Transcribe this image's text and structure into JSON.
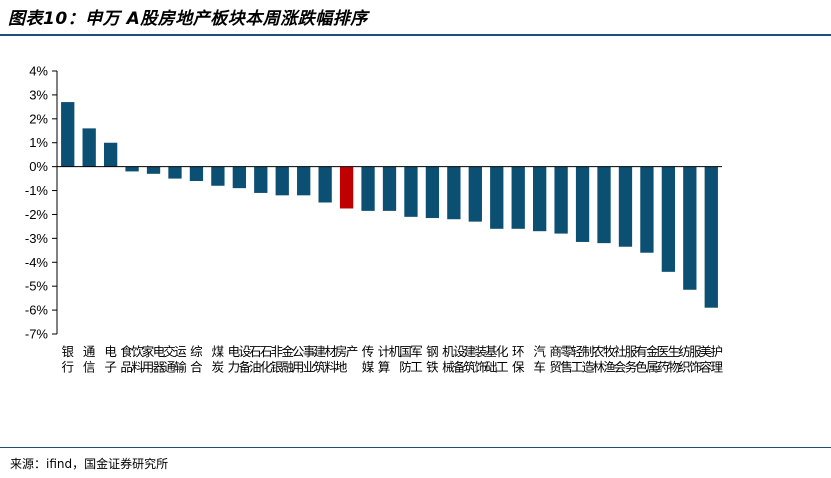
{
  "header": {
    "title": "图表10：申万 A股房地产板块本周涨跌幅排序"
  },
  "footer": {
    "source": "来源：ifind，国金证券研究所"
  },
  "colors": {
    "bar": "#0b4f72",
    "highlight": "#c00000",
    "rule": "#1f4e79"
  },
  "chart_data": {
    "type": "bar",
    "categories": [
      "银行",
      "通信",
      "电子",
      "食品饮料",
      "家用电器",
      "交通运输",
      "综合",
      "煤炭",
      "电力设备",
      "石油石化",
      "非银金融",
      "公用事业",
      "建筑材料",
      "房地产",
      "传媒",
      "计算机",
      "国防军工",
      "钢铁",
      "机械设备",
      "建筑装饰",
      "基础化工",
      "环保",
      "汽车",
      "商贸零售",
      "轻工制造",
      "农林牧渔",
      "社会服务",
      "有色金属",
      "医药生物",
      "纺织服饰",
      "美容护理"
    ],
    "values": [
      2.7,
      1.6,
      1.0,
      -0.2,
      -0.3,
      -0.5,
      -0.6,
      -0.8,
      -0.9,
      -1.1,
      -1.2,
      -1.2,
      -1.5,
      -1.75,
      -1.85,
      -1.85,
      -2.1,
      -2.15,
      -2.2,
      -2.3,
      -2.6,
      -2.6,
      -2.7,
      -2.8,
      -3.15,
      -3.2,
      -3.35,
      -3.6,
      -4.4,
      -5.15,
      -5.9
    ],
    "highlight": "房地产",
    "ylim": [
      -7,
      4
    ],
    "yticks": [
      "-7%",
      "-6%",
      "-5%",
      "-4%",
      "-3%",
      "-2%",
      "-1%",
      "0%",
      "1%",
      "2%",
      "3%",
      "4%"
    ],
    "title": "",
    "xlabel": "",
    "ylabel": ""
  }
}
